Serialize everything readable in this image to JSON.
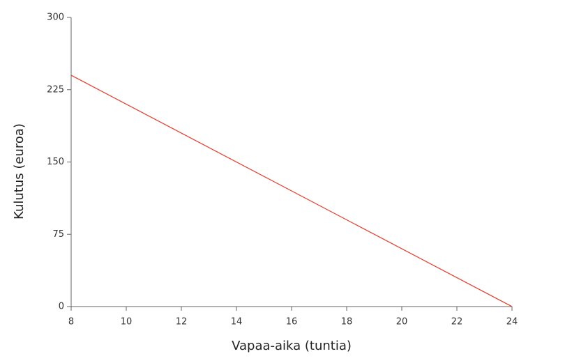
{
  "chart_data": {
    "type": "line",
    "x": [
      8,
      24
    ],
    "values": [
      240,
      0
    ],
    "color": "#e0483a",
    "x_label": "Vapaa-aika (tuntia)",
    "y_label": "Kulutus (euroa)",
    "xlim": [
      8,
      24
    ],
    "xticks": [
      8,
      10,
      12,
      14,
      16,
      18,
      20,
      22,
      24
    ],
    "ylim": [
      0,
      300
    ],
    "yticks": [
      0,
      75,
      150,
      225,
      300
    ]
  }
}
